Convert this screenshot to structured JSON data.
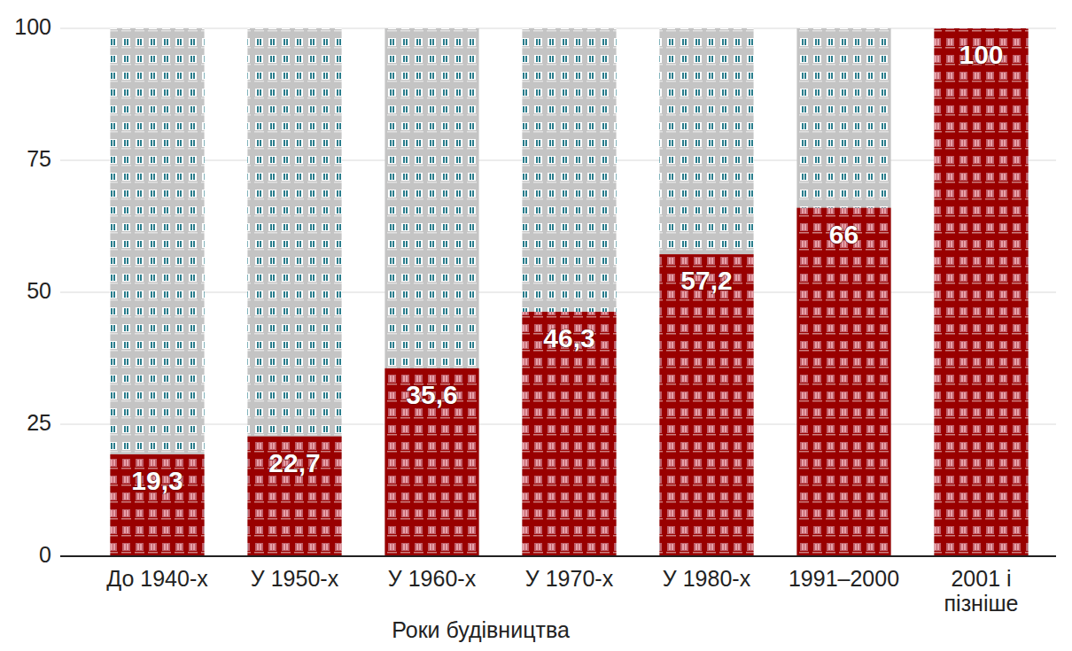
{
  "chart_data": {
    "type": "bar",
    "xlabel": "Роки будівництва",
    "categories": [
      "До 1940-х",
      "У 1950-х",
      "У 1960-х",
      "У 1970-х",
      "У 1980-х",
      "1991–2000",
      "2001 і пізніше"
    ],
    "values": [
      19.3,
      22.7,
      35.6,
      46.3,
      57.2,
      66,
      100
    ],
    "value_labels": [
      "19,3",
      "22,7",
      "35,6",
      "46,3",
      "57,2",
      "66",
      "100"
    ],
    "color": "#990000",
    "ylim": [
      0,
      100
    ],
    "yticks": [
      0,
      25,
      50,
      75,
      100
    ],
    "grid": true,
    "data_labels": true
  }
}
